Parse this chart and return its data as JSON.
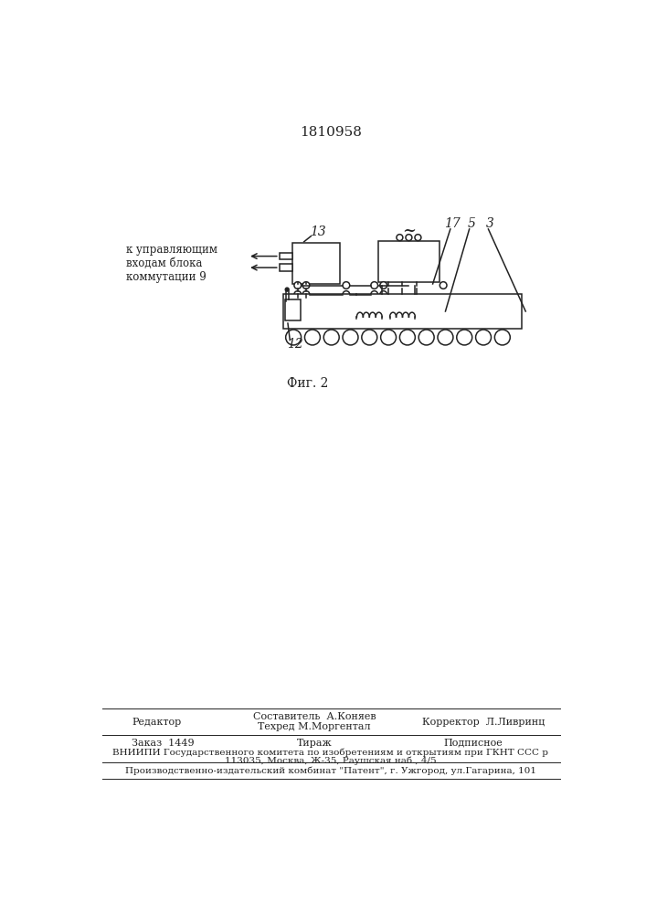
{
  "title": "1810958",
  "fig_caption": "Фиг. 2",
  "label_left": "к управляющим\nвходам блока\nкоммутации 9",
  "label_13": "13",
  "label_12": "12",
  "label_17": "17",
  "label_5": "5",
  "label_3": "3",
  "bg_color": "#ffffff",
  "line_color": "#222222",
  "footer_row1_col1": "Редактор",
  "footer_row1_col2a": "Составитель  А.Коняев",
  "footer_row1_col2b": "Техред М.Моргентал",
  "footer_row1_col3": "Корректор  Л.Ливринц",
  "footer_row2_col1": "Заказ  1449",
  "footer_row2_col2": "Тираж",
  "footer_row2_col3": "Подписное",
  "footer_vniipи1": "ВНИИПИ Государственного комитета по изобретениям и открытиям при ГКНТ ССС р",
  "footer_vniipи2": "113035, Москва, Ж-35, Раушская наб., 4/5",
  "footer_patent": "Производственно-издательский комбинат \"Патент\", г. Ужгород, ул.Гагарина, 101"
}
